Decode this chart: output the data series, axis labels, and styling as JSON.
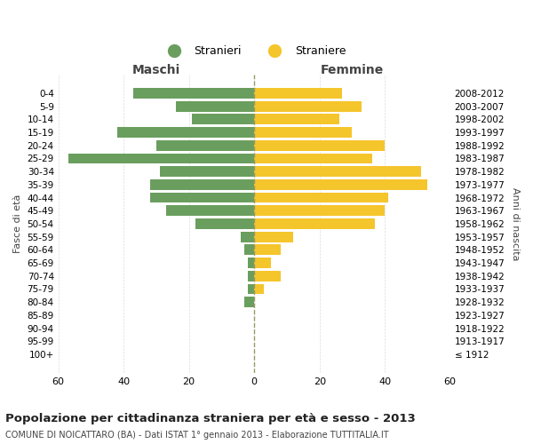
{
  "age_groups": [
    "100+",
    "95-99",
    "90-94",
    "85-89",
    "80-84",
    "75-79",
    "70-74",
    "65-69",
    "60-64",
    "55-59",
    "50-54",
    "45-49",
    "40-44",
    "35-39",
    "30-34",
    "25-29",
    "20-24",
    "15-19",
    "10-14",
    "5-9",
    "0-4"
  ],
  "birth_years": [
    "≤ 1912",
    "1913-1917",
    "1918-1922",
    "1923-1927",
    "1928-1932",
    "1933-1937",
    "1938-1942",
    "1943-1947",
    "1948-1952",
    "1953-1957",
    "1958-1962",
    "1963-1967",
    "1968-1972",
    "1973-1977",
    "1978-1982",
    "1983-1987",
    "1988-1992",
    "1993-1997",
    "1998-2002",
    "2003-2007",
    "2008-2012"
  ],
  "maschi": [
    0,
    0,
    0,
    0,
    3,
    2,
    2,
    2,
    3,
    4,
    18,
    27,
    32,
    32,
    29,
    57,
    30,
    42,
    19,
    24,
    37
  ],
  "femmine": [
    0,
    0,
    0,
    0,
    0,
    3,
    8,
    5,
    8,
    12,
    37,
    40,
    41,
    53,
    51,
    36,
    40,
    30,
    26,
    33,
    27
  ],
  "male_color": "#6a9e5e",
  "female_color": "#f5c52c",
  "background_color": "#ffffff",
  "grid_color": "#cccccc",
  "title": "Popolazione per cittadinanza straniera per età e sesso - 2013",
  "subtitle": "COMUNE DI NOICATTARO (BA) - Dati ISTAT 1° gennaio 2013 - Elaborazione TUTTITALIA.IT",
  "xlabel_left": "Maschi",
  "xlabel_right": "Femmine",
  "ylabel_left": "Fasce di età",
  "ylabel_right": "Anni di nascita",
  "legend_stranieri": "Stranieri",
  "legend_straniere": "Straniere",
  "xlim": 60,
  "bar_height": 0.8
}
